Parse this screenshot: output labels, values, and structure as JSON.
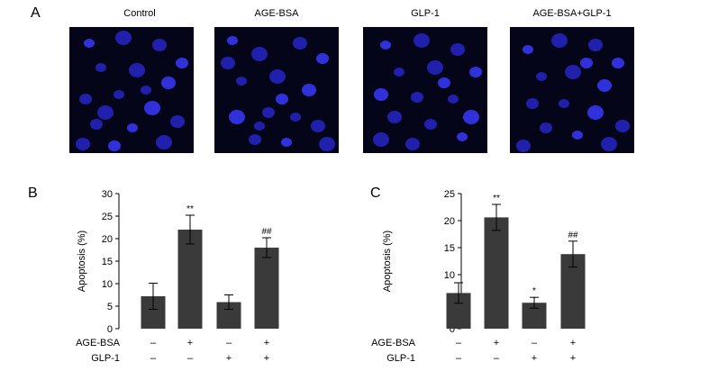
{
  "panels": {
    "a": "A",
    "b": "B",
    "c": "C"
  },
  "images": [
    {
      "label": "Control"
    },
    {
      "label": "AGE-BSA"
    },
    {
      "label": "GLP-1"
    },
    {
      "label": "AGE-BSA+GLP-1"
    }
  ],
  "chart_data": [
    {
      "type": "bar",
      "panel": "B",
      "ylabel": "Apoptosis (%)",
      "ylim": [
        0,
        30
      ],
      "yticks": [
        0,
        5,
        10,
        15,
        20,
        25,
        30
      ],
      "values": [
        7.2,
        22.0,
        5.9,
        18.0
      ],
      "errors": [
        2.9,
        3.2,
        1.6,
        2.2
      ],
      "annotations": [
        "",
        "**",
        "",
        "##"
      ],
      "conditions": [
        {
          "label": "AGE-BSA",
          "signs": [
            "–",
            "+",
            "–",
            "+"
          ]
        },
        {
          "label": "GLP-1",
          "signs": [
            "–",
            "–",
            "+",
            "+"
          ]
        }
      ],
      "bar_color": "#3a3a3a"
    },
    {
      "type": "bar",
      "panel": "C",
      "ylabel": "Apoptosis (%)",
      "ylim": [
        0,
        25
      ],
      "yticks": [
        0,
        5,
        10,
        15,
        20,
        25
      ],
      "values": [
        6.6,
        20.6,
        4.8,
        13.8
      ],
      "errors": [
        1.9,
        2.4,
        1.0,
        2.4
      ],
      "annotations": [
        "",
        "**",
        "*",
        "##"
      ],
      "conditions": [
        {
          "label": "AGE-BSA",
          "signs": [
            "–",
            "+",
            "–",
            "+"
          ]
        },
        {
          "label": "GLP-1",
          "signs": [
            "–",
            "–",
            "+",
            "+"
          ]
        }
      ],
      "bar_color": "#3a3a3a"
    }
  ]
}
